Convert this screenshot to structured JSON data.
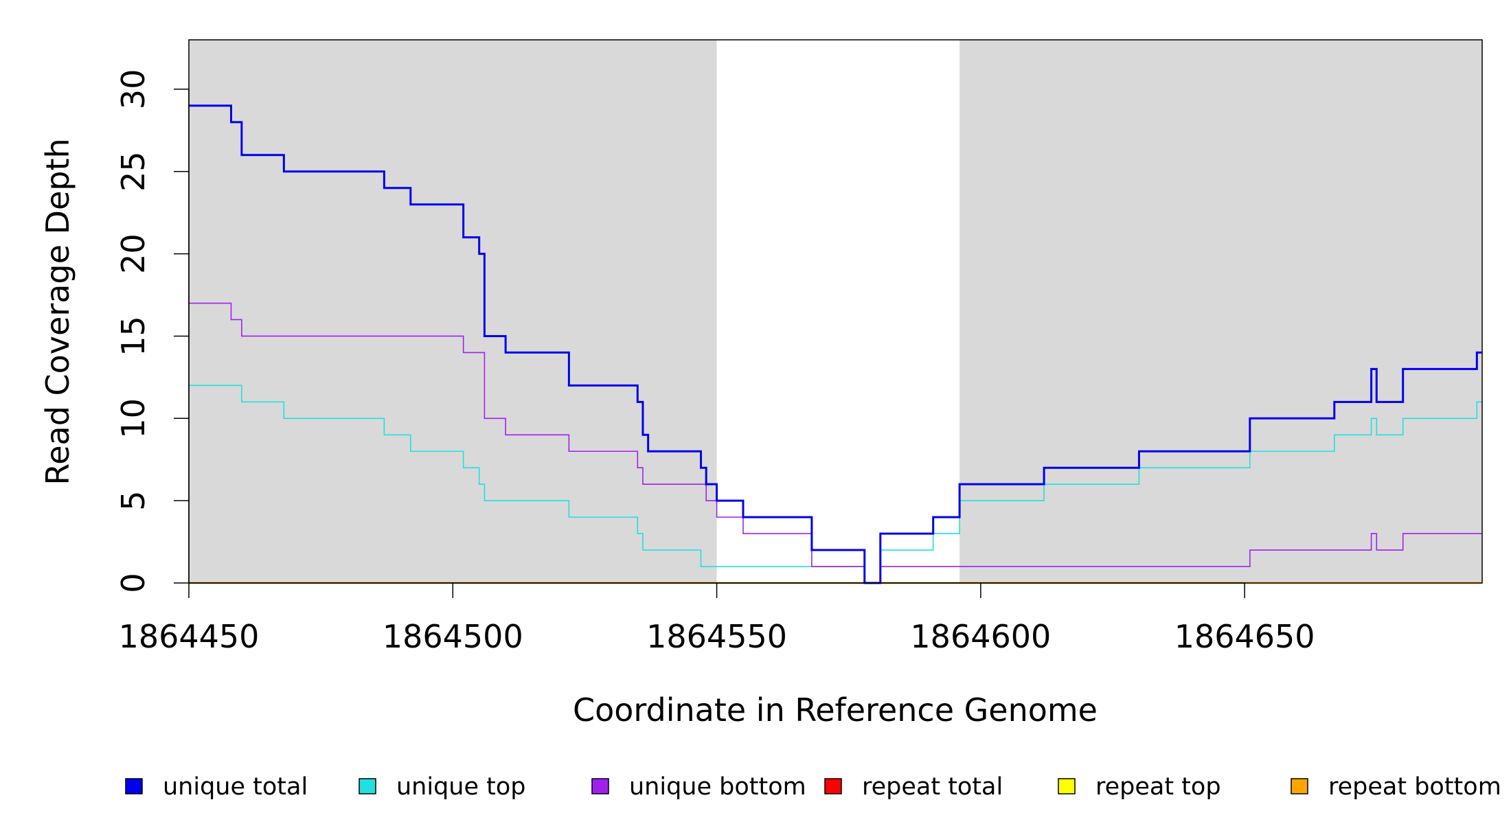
{
  "chart_data": {
    "type": "line",
    "step": true,
    "xlabel": "Coordinate in Reference Genome",
    "ylabel": "Read Coverage Depth",
    "xlim": [
      1864450,
      1864695
    ],
    "ylim": [
      0,
      33
    ],
    "x_ticks": [
      1864450,
      1864500,
      1864550,
      1864600,
      1864650
    ],
    "x_tick_labels": [
      "1864450",
      "1864500",
      "1864550",
      "1864600",
      "1864650"
    ],
    "y_ticks": [
      0,
      5,
      10,
      15,
      20,
      25,
      30
    ],
    "y_tick_labels": [
      "0",
      "5",
      "10",
      "15",
      "20",
      "25",
      "30"
    ],
    "background_color": "#d9d9d9",
    "highlight_region": [
      1864550,
      1864596
    ],
    "highlight_color": "#ffffff",
    "legend_position": "bottom",
    "series": [
      {
        "name": "unique total",
        "color": "#0000ee",
        "steps": [
          [
            1864450,
            29
          ],
          [
            1864458,
            28
          ],
          [
            1864460,
            26
          ],
          [
            1864468,
            25
          ],
          [
            1864487,
            24
          ],
          [
            1864492,
            23
          ],
          [
            1864502,
            21
          ],
          [
            1864505,
            20
          ],
          [
            1864506,
            15
          ],
          [
            1864510,
            14
          ],
          [
            1864522,
            12
          ],
          [
            1864535,
            11
          ],
          [
            1864536,
            9
          ],
          [
            1864537,
            8
          ],
          [
            1864547,
            7
          ],
          [
            1864548,
            6
          ],
          [
            1864550,
            5
          ],
          [
            1864555,
            4
          ],
          [
            1864568,
            2
          ],
          [
            1864578,
            0
          ],
          [
            1864581,
            3
          ],
          [
            1864591,
            4
          ],
          [
            1864596,
            6
          ],
          [
            1864612,
            7
          ],
          [
            1864630,
            8
          ],
          [
            1864651,
            10
          ],
          [
            1864667,
            11
          ],
          [
            1864674,
            13
          ],
          [
            1864675,
            11
          ],
          [
            1864680,
            13
          ],
          [
            1864694,
            14
          ],
          [
            1864695,
            14
          ]
        ]
      },
      {
        "name": "unique top",
        "color": "#22e0e0",
        "steps": [
          [
            1864450,
            12
          ],
          [
            1864460,
            11
          ],
          [
            1864468,
            10
          ],
          [
            1864487,
            9
          ],
          [
            1864492,
            8
          ],
          [
            1864502,
            7
          ],
          [
            1864505,
            6
          ],
          [
            1864506,
            5
          ],
          [
            1864522,
            4
          ],
          [
            1864535,
            3
          ],
          [
            1864536,
            2
          ],
          [
            1864547,
            1
          ],
          [
            1864568,
            1
          ],
          [
            1864578,
            0
          ],
          [
            1864581,
            2
          ],
          [
            1864591,
            3
          ],
          [
            1864596,
            5
          ],
          [
            1864612,
            6
          ],
          [
            1864630,
            7
          ],
          [
            1864651,
            8
          ],
          [
            1864667,
            9
          ],
          [
            1864674,
            10
          ],
          [
            1864675,
            9
          ],
          [
            1864680,
            10
          ],
          [
            1864694,
            11
          ],
          [
            1864695,
            11
          ]
        ]
      },
      {
        "name": "unique bottom",
        "color": "#a020f0",
        "steps": [
          [
            1864450,
            17
          ],
          [
            1864458,
            16
          ],
          [
            1864460,
            15
          ],
          [
            1864502,
            14
          ],
          [
            1864506,
            10
          ],
          [
            1864510,
            9
          ],
          [
            1864522,
            8
          ],
          [
            1864535,
            7
          ],
          [
            1864536,
            6
          ],
          [
            1864548,
            5
          ],
          [
            1864550,
            4
          ],
          [
            1864555,
            3
          ],
          [
            1864568,
            1
          ],
          [
            1864578,
            0
          ],
          [
            1864581,
            1
          ],
          [
            1864651,
            2
          ],
          [
            1864674,
            3
          ],
          [
            1864675,
            2
          ],
          [
            1864680,
            3
          ],
          [
            1864695,
            3
          ]
        ]
      },
      {
        "name": "repeat total",
        "color": "#ff0000",
        "steps": [
          [
            1864450,
            0
          ],
          [
            1864695,
            0
          ]
        ]
      },
      {
        "name": "repeat top",
        "color": "#ffff00",
        "steps": [
          [
            1864450,
            0
          ],
          [
            1864695,
            0
          ]
        ]
      },
      {
        "name": "repeat bottom",
        "color": "#ffa500",
        "steps": [
          [
            1864450,
            0
          ],
          [
            1864695,
            0
          ]
        ]
      }
    ]
  }
}
